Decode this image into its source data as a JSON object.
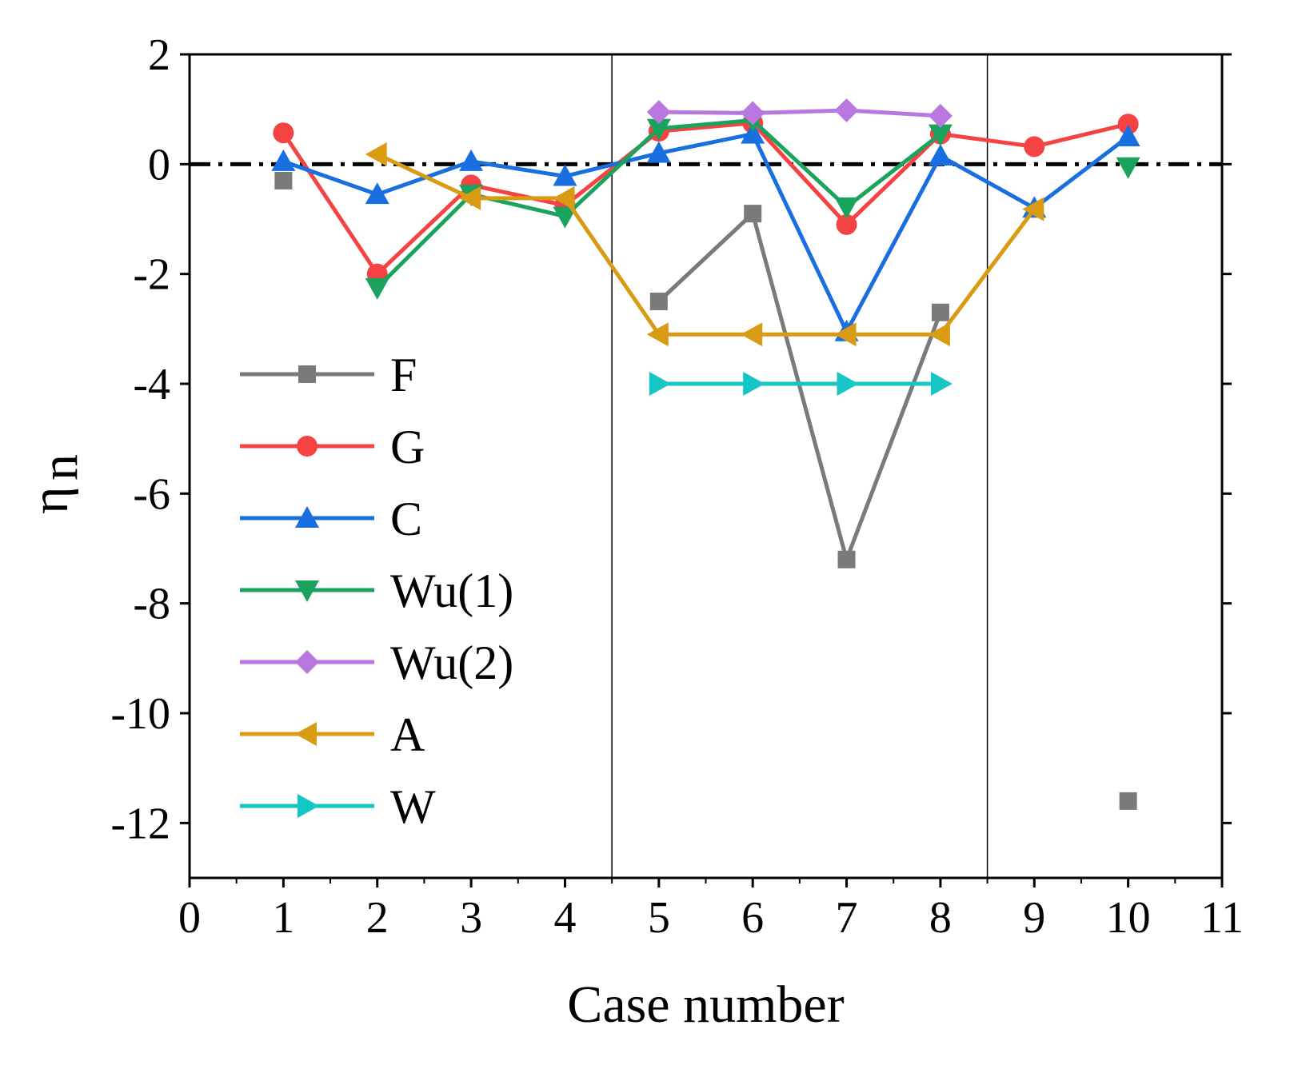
{
  "chart_data": {
    "type": "line",
    "title": "",
    "xlabel": "Case number",
    "ylabel_main": "η",
    "ylabel_sub": "n",
    "xlim": [
      0,
      11
    ],
    "ylim": [
      -13,
      2
    ],
    "x_ticks": [
      0,
      1,
      2,
      3,
      4,
      5,
      6,
      7,
      8,
      9,
      10,
      11
    ],
    "y_ticks": [
      2,
      0,
      -2,
      -4,
      -6,
      -8,
      -10,
      -12
    ],
    "x_tick_labels": [
      "0",
      "1",
      "2",
      "3",
      "4",
      "5",
      "6",
      "7",
      "8",
      "9",
      "10",
      "11"
    ],
    "y_tick_labels": [
      "2",
      "0",
      "-2",
      "-4",
      "-6",
      "-8",
      "-10",
      "-12"
    ],
    "reference_line": {
      "y": 0,
      "style": "dash-dot",
      "color": "#000000"
    },
    "vertical_separators": [
      4.5,
      8.5
    ],
    "legend_position": "left-center",
    "series": [
      {
        "name": "F",
        "color": "#7a7a7a",
        "marker": "square",
        "points": [
          [
            1,
            -0.3
          ],
          [
            5,
            -2.5
          ],
          [
            6,
            -0.9
          ],
          [
            7,
            -7.2
          ],
          [
            8,
            -2.7
          ],
          [
            10,
            -11.6
          ]
        ],
        "segments": [
          [
            5,
            6,
            7,
            8
          ]
        ]
      },
      {
        "name": "G",
        "color": "#f54242",
        "marker": "circle",
        "points": [
          [
            1,
            0.57
          ],
          [
            2,
            -2.0
          ],
          [
            3,
            -0.38
          ],
          [
            4,
            -0.75
          ],
          [
            5,
            0.6
          ],
          [
            6,
            0.75
          ],
          [
            7,
            -1.1
          ],
          [
            8,
            0.55
          ],
          [
            9,
            0.32
          ],
          [
            10,
            0.73
          ]
        ],
        "segments": [
          [
            1,
            2,
            3,
            4,
            5,
            6,
            7,
            8,
            9,
            10
          ]
        ]
      },
      {
        "name": "C",
        "color": "#1a6fe0",
        "marker": "triangle-up",
        "points": [
          [
            1,
            0.05
          ],
          [
            2,
            -0.55
          ],
          [
            3,
            0.05
          ],
          [
            4,
            -0.22
          ],
          [
            5,
            0.2
          ],
          [
            6,
            0.55
          ],
          [
            7,
            -3.05
          ],
          [
            8,
            0.15
          ],
          [
            9,
            -0.8
          ],
          [
            10,
            0.5
          ]
        ],
        "segments": [
          [
            1,
            2,
            3,
            4,
            5,
            6,
            7,
            8,
            9,
            10
          ]
        ]
      },
      {
        "name": "Wu(1)",
        "color": "#1aa35c",
        "marker": "triangle-down",
        "points": [
          [
            2,
            -2.25
          ],
          [
            3,
            -0.55
          ],
          [
            4,
            -0.95
          ],
          [
            5,
            0.65
          ],
          [
            6,
            0.8
          ],
          [
            7,
            -0.78
          ],
          [
            8,
            0.55
          ],
          [
            10,
            -0.05
          ]
        ],
        "segments": [
          [
            2,
            3,
            4,
            5,
            6,
            7,
            8
          ]
        ]
      },
      {
        "name": "Wu(2)",
        "color": "#bb77e0",
        "marker": "diamond",
        "points": [
          [
            5,
            0.95
          ],
          [
            6,
            0.93
          ],
          [
            7,
            0.98
          ],
          [
            8,
            0.88
          ]
        ],
        "segments": [
          [
            5,
            6,
            7,
            8
          ]
        ]
      },
      {
        "name": "A",
        "color": "#d99a14",
        "marker": "triangle-left",
        "points": [
          [
            2,
            0.18
          ],
          [
            3,
            -0.62
          ],
          [
            4,
            -0.62
          ],
          [
            5,
            -3.1
          ],
          [
            6,
            -3.1
          ],
          [
            7,
            -3.1
          ],
          [
            8,
            -3.1
          ],
          [
            9,
            -0.82
          ]
        ],
        "segments": [
          [
            2,
            3,
            4,
            5,
            6,
            7,
            8,
            9
          ]
        ]
      },
      {
        "name": "W",
        "color": "#16c6c6",
        "marker": "triangle-right",
        "points": [
          [
            5,
            -4.0
          ],
          [
            6,
            -4.0
          ],
          [
            7,
            -4.0
          ],
          [
            8,
            -4.0
          ]
        ],
        "segments": [
          [
            5,
            6,
            7,
            8
          ]
        ]
      }
    ]
  }
}
